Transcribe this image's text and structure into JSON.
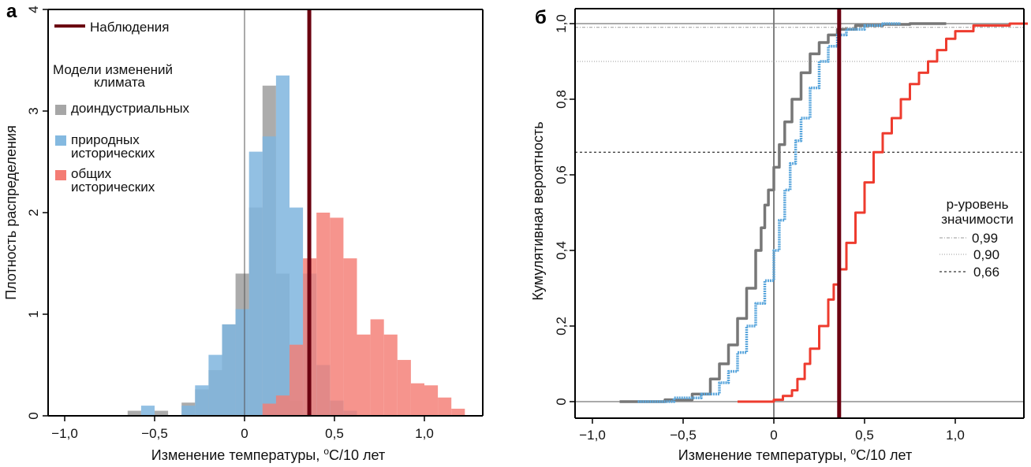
{
  "chart_data": [
    {
      "type": "bar",
      "subtype": "overlapping-histogram",
      "panel_label": "а",
      "title": "",
      "xlabel": "Изменение температуры, °C/10 лет",
      "xlabel_parts": {
        "pre": "Изменение температуры, ",
        "sup": "o",
        "post": "C/10 лет"
      },
      "ylabel": "Плотность распределения",
      "xlim": [
        -1.1,
        1.4
      ],
      "ylim": [
        0,
        4
      ],
      "xticks": [
        -1.0,
        -0.5,
        0,
        0.5,
        1.0
      ],
      "xtick_labels": [
        "−1,0",
        "−0,5",
        "0",
        "0,5",
        "1,0"
      ],
      "yticks": [
        0,
        1,
        2,
        3,
        4
      ],
      "ytick_labels": [
        "0",
        "1",
        "2",
        "3",
        "4"
      ],
      "grid": false,
      "zero_line": 0,
      "observation": {
        "label": "Наблюдения",
        "x": 0.36,
        "color": "#6b0010"
      },
      "legend": {
        "placement": "top-left",
        "observation_label": "Наблюдения",
        "group_title_line1": "Модели изменений",
        "group_title_line2": "климата",
        "entries": [
          {
            "lines": [
              "доиндустриальных"
            ],
            "color": "#a6a6a6"
          },
          {
            "lines": [
              "природных",
              "исторических"
            ],
            "color": "#84b9e0"
          },
          {
            "lines": [
              "общих",
              "исторических"
            ],
            "color": "#f47c74"
          }
        ]
      },
      "bin_start": -0.65,
      "bin_width": 0.075,
      "series": [
        {
          "name": "доиндустриальных",
          "color": "#9e9e9e",
          "values": [
            0.05,
            0.0,
            0.05,
            0.0,
            0.13,
            0.26,
            0.45,
            0.9,
            1.4,
            2.05,
            3.25,
            1.4,
            0.15,
            0.02,
            0.0,
            0.0,
            0.0,
            0.0,
            0.0,
            0.0,
            0.0,
            0.0,
            0.0,
            0.0,
            0.0,
            0.0,
            0.0,
            0.0,
            0.0,
            0.0,
            0.0,
            0.0,
            0.0
          ]
        },
        {
          "name": "природных исторических",
          "color": "#7fb5de",
          "values": [
            0.0,
            0.1,
            0.0,
            0.0,
            0.1,
            0.3,
            0.6,
            0.9,
            1.05,
            2.6,
            2.75,
            3.35,
            2.05,
            1.4,
            0.5,
            0.15,
            0.05,
            0.0,
            0.0,
            0.0,
            0.0,
            0.0,
            0.0,
            0.0,
            0.0,
            0.0,
            0.0,
            0.0,
            0.0,
            0.0,
            0.0,
            0.0,
            0.0
          ]
        },
        {
          "name": "общих исторических",
          "color": "#f47c74",
          "values": [
            0.0,
            0.0,
            0.0,
            0.0,
            0.0,
            0.0,
            0.0,
            0.0,
            0.0,
            0.0,
            0.12,
            0.2,
            0.7,
            1.55,
            2.0,
            1.95,
            1.55,
            0.8,
            0.95,
            0.8,
            0.55,
            0.32,
            0.3,
            0.18,
            0.07,
            0.0,
            0.0,
            0.0,
            0.0,
            0.0,
            0.0,
            0.0,
            0.0
          ]
        }
      ]
    },
    {
      "type": "line",
      "subtype": "empirical-cdf",
      "panel_label": "б",
      "title": "",
      "xlabel": "Изменение температуры, °C/10 лет",
      "xlabel_parts": {
        "pre": "Изменение температуры, ",
        "sup": "o",
        "post": "C/10 лет"
      },
      "ylabel": "Кумулятивная вероятность",
      "xlim": [
        -1.1,
        1.4
      ],
      "ylim": [
        -0.05,
        1.04
      ],
      "xticks": [
        -1.0,
        -0.5,
        0,
        0.5,
        1.0
      ],
      "xtick_labels": [
        "−1,0",
        "−0,5",
        "0",
        "0,5",
        "1,0"
      ],
      "yticks": [
        0,
        0.2,
        0.4,
        0.6,
        0.8,
        1.0
      ],
      "ytick_labels": [
        "0",
        "0,2",
        "0,4",
        "0,6",
        "0,8",
        "1,0"
      ],
      "grid": false,
      "zero_line_x": 0,
      "hlines_solid": [
        0,
        1.0
      ],
      "observation": {
        "x": 0.36,
        "color": "#6b0010"
      },
      "significance": {
        "title_line1": "р-уровень",
        "title_line2": "значимости",
        "placement": "right",
        "levels": [
          {
            "value": 0.99,
            "label": "0,99",
            "style": "dashdot",
            "color": "#9a9a9a"
          },
          {
            "value": 0.9,
            "label": "0,90",
            "style": "dotted",
            "color": "#9a9a9a"
          },
          {
            "value": 0.66,
            "label": "0,66",
            "style": "dashed",
            "color": "#000000"
          }
        ]
      },
      "series": [
        {
          "name": "доиндустриальных",
          "color": "#777777",
          "x": [
            -0.85,
            -0.6,
            -0.45,
            -0.35,
            -0.3,
            -0.25,
            -0.2,
            -0.15,
            -0.1,
            -0.07,
            -0.05,
            -0.03,
            0.0,
            0.03,
            0.06,
            0.1,
            0.15,
            0.2,
            0.25,
            0.3,
            0.35,
            0.45,
            0.6,
            0.75,
            0.95
          ],
          "y": [
            0.0,
            0.005,
            0.02,
            0.06,
            0.1,
            0.15,
            0.22,
            0.3,
            0.4,
            0.46,
            0.52,
            0.56,
            0.62,
            0.68,
            0.74,
            0.8,
            0.87,
            0.92,
            0.95,
            0.97,
            0.985,
            0.995,
            0.998,
            1.0,
            1.0
          ]
        },
        {
          "name": "природных исторических",
          "color": "#5aa6dc",
          "x": [
            -0.75,
            -0.55,
            -0.4,
            -0.3,
            -0.25,
            -0.2,
            -0.15,
            -0.1,
            -0.05,
            0.0,
            0.03,
            0.06,
            0.09,
            0.12,
            0.15,
            0.2,
            0.25,
            0.3,
            0.35,
            0.4,
            0.5,
            0.6,
            0.7
          ],
          "y": [
            0.0,
            0.01,
            0.02,
            0.05,
            0.08,
            0.13,
            0.2,
            0.26,
            0.32,
            0.4,
            0.48,
            0.56,
            0.63,
            0.69,
            0.75,
            0.83,
            0.9,
            0.94,
            0.97,
            0.985,
            0.995,
            1.0,
            1.0
          ]
        },
        {
          "name": "общих исторических",
          "color": "#ee3b2e",
          "x": [
            -0.2,
            -0.05,
            0.0,
            0.05,
            0.1,
            0.13,
            0.17,
            0.2,
            0.25,
            0.3,
            0.33,
            0.36,
            0.4,
            0.45,
            0.5,
            0.55,
            0.6,
            0.65,
            0.7,
            0.75,
            0.8,
            0.85,
            0.9,
            0.95,
            1.0,
            1.1,
            1.3,
            1.4
          ],
          "y": [
            0.0,
            0.0,
            0.005,
            0.015,
            0.03,
            0.06,
            0.1,
            0.14,
            0.2,
            0.27,
            0.31,
            0.35,
            0.42,
            0.5,
            0.58,
            0.66,
            0.71,
            0.75,
            0.8,
            0.84,
            0.87,
            0.9,
            0.93,
            0.96,
            0.98,
            0.995,
            1.0,
            1.0
          ]
        }
      ]
    }
  ]
}
